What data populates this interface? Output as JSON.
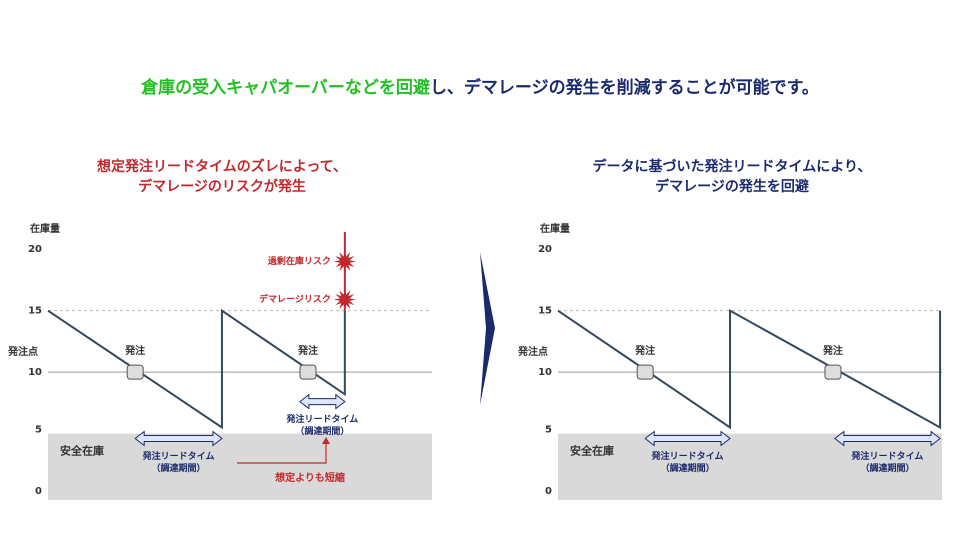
{
  "headline": {
    "highlight": "倉庫の受入キャパオーバーなどを回避",
    "rest": "し、デマレージの発生を削減することが可能です。"
  },
  "chart_data": [
    {
      "type": "line",
      "title": [
        "想定発注リードタイムのズレによって、",
        "デマレージのリスクが発生"
      ],
      "title_color": "#c0282d",
      "y_label": "在庫量",
      "ylim": [
        -0.4,
        21.4
      ],
      "yticks": [
        0,
        5,
        10,
        15,
        20
      ],
      "xlim": [
        0,
        100
      ],
      "threshold": {
        "value": 10,
        "label": "発注点"
      },
      "max_line": 15,
      "safety_stock": {
        "value": 5,
        "label": "安全在庫"
      },
      "series": [
        {
          "color": "#34495e",
          "x": [
            0,
            45.3,
            45.3,
            77.3,
            77.3
          ],
          "values": [
            15,
            5.5,
            15,
            8.2,
            15
          ]
        },
        {
          "color": "#c0282d",
          "x": [
            77.3,
            77.3
          ],
          "values": [
            15,
            21.4
          ]
        }
      ],
      "orders": [
        {
          "x": 22.7,
          "y": 10,
          "label": "発注"
        },
        {
          "x": 67.7,
          "y": 10,
          "label": "発注"
        }
      ],
      "lead_times": [
        {
          "x": [
            22.7,
            45.3
          ],
          "y": 4.6,
          "label": [
            "発注リードタイム",
            "（調達期間）"
          ]
        },
        {
          "x": [
            65.6,
            77.3
          ],
          "y": 7.6,
          "label": [
            "発注リードタイム",
            "（調達期間）"
          ]
        }
      ],
      "risks": [
        {
          "x": 77.3,
          "y": 19,
          "label": "過剰在庫リスク"
        },
        {
          "x": 77.3,
          "y": 15.9,
          "label": "デマレージリスク"
        }
      ],
      "callout": "想定よりも短縮"
    },
    {
      "type": "line",
      "title": [
        "データに基づいた発注リードタイムにより、",
        "デマレージの発生を回避"
      ],
      "title_color": "#1a2a6c",
      "y_label": "在庫量",
      "ylim": [
        -0.4,
        21.4
      ],
      "yticks": [
        0,
        5,
        10,
        15,
        20
      ],
      "xlim": [
        0,
        100
      ],
      "threshold": {
        "value": 10,
        "label": "発注点"
      },
      "max_line": 15,
      "safety_stock": {
        "value": 5,
        "label": "安全在庫"
      },
      "series": [
        {
          "color": "#34495e",
          "x": [
            0,
            44.8,
            44.8,
            99.5,
            99.5
          ],
          "values": [
            15,
            5.5,
            15,
            5.5,
            15
          ]
        }
      ],
      "orders": [
        {
          "x": 22.7,
          "y": 10,
          "label": "発注"
        },
        {
          "x": 71.6,
          "y": 10,
          "label": "発注"
        }
      ],
      "lead_times": [
        {
          "x": [
            22.7,
            44.8
          ],
          "y": 4.6,
          "label": [
            "発注リードタイム",
            "（調達期間）"
          ]
        },
        {
          "x": [
            72.1,
            99.5
          ],
          "y": 4.6,
          "label": [
            "発注リードタイム",
            "（調達期間）"
          ]
        }
      ],
      "risks": []
    }
  ]
}
